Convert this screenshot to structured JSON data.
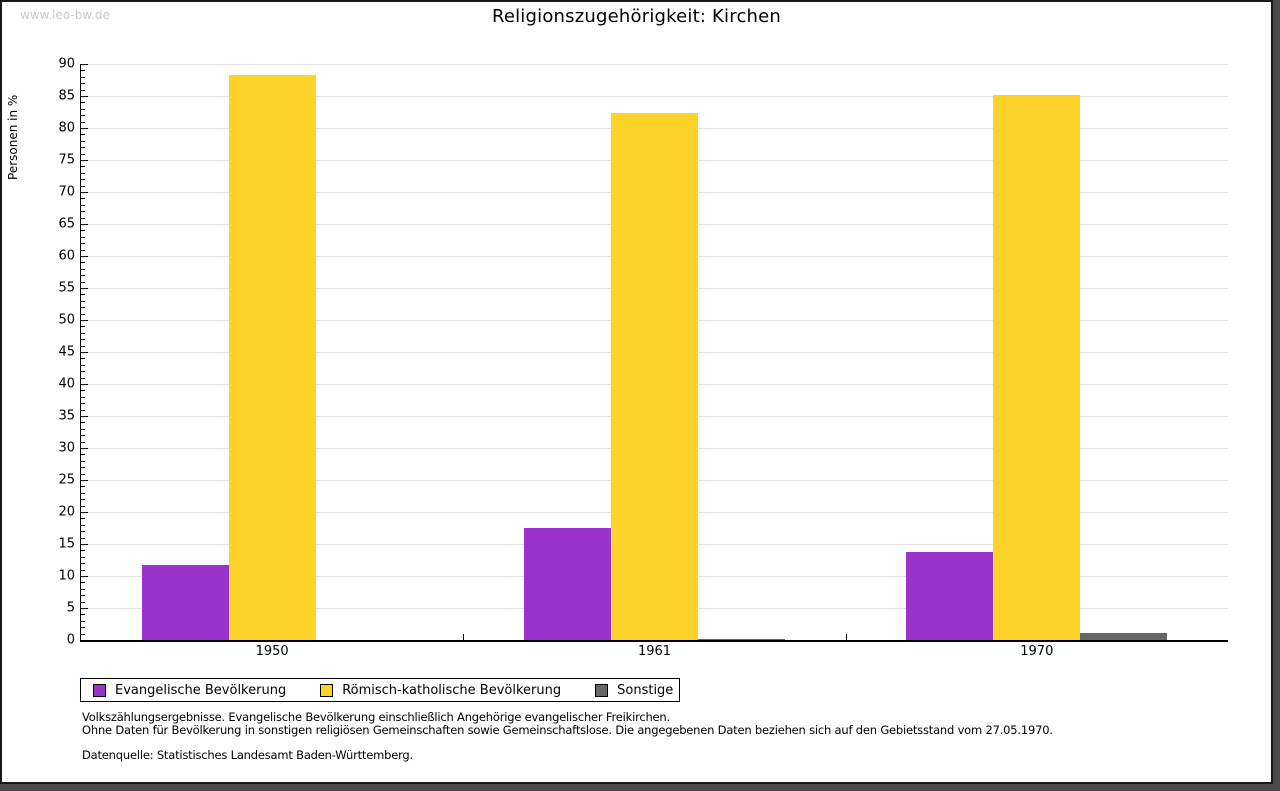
{
  "watermark": "www.leo-bw.de",
  "title": "Religionszugehörigkeit: Kirchen",
  "chart_data": {
    "type": "bar",
    "title": "Religionszugehörigkeit: Kirchen",
    "xlabel": "",
    "ylabel": "Personen in %",
    "ylim": [
      0,
      90
    ],
    "y_major_step": 5,
    "y_minor_step": 1,
    "grid": "horizontal light-gray lines every 5 units",
    "legend_position": "bottom-left boxed",
    "categories": [
      "1950",
      "1961",
      "1970"
    ],
    "series": [
      {
        "name": "Evangelische Bevölkerung",
        "color": "#9933cc",
        "values": [
          11.7,
          17.5,
          13.8
        ]
      },
      {
        "name": "Römisch-katholische Bevölkerung",
        "color": "#fdd32a",
        "values": [
          88.3,
          82.3,
          85.1
        ]
      },
      {
        "name": "Sonstige",
        "color": "#666666",
        "values": [
          0.0,
          0.2,
          1.1
        ]
      }
    ]
  },
  "footnotes": {
    "line1": "Volkszählungsergebnisse. Evangelische Bevölkerung einschließlich Angehörige evangelischer Freikirchen.",
    "line2": "Ohne Daten für Bevölkerung in sonstigen religiösen Gemeinschaften sowie Gemeinschaftslose. Die angegebenen Daten beziehen sich auf den Gebietsstand vom 27.05.1970.",
    "source": "Datenquelle: Statistisches Landesamt Baden-Württemberg."
  },
  "colors": {
    "evangelisch": "#9933cc",
    "katholisch": "#fdd32a",
    "sonstige": "#666666",
    "gridline": "#e1e1e1",
    "axis": "#000000",
    "watermark": "#c9c9c9",
    "frame_shadow": "#4a4a4a"
  }
}
